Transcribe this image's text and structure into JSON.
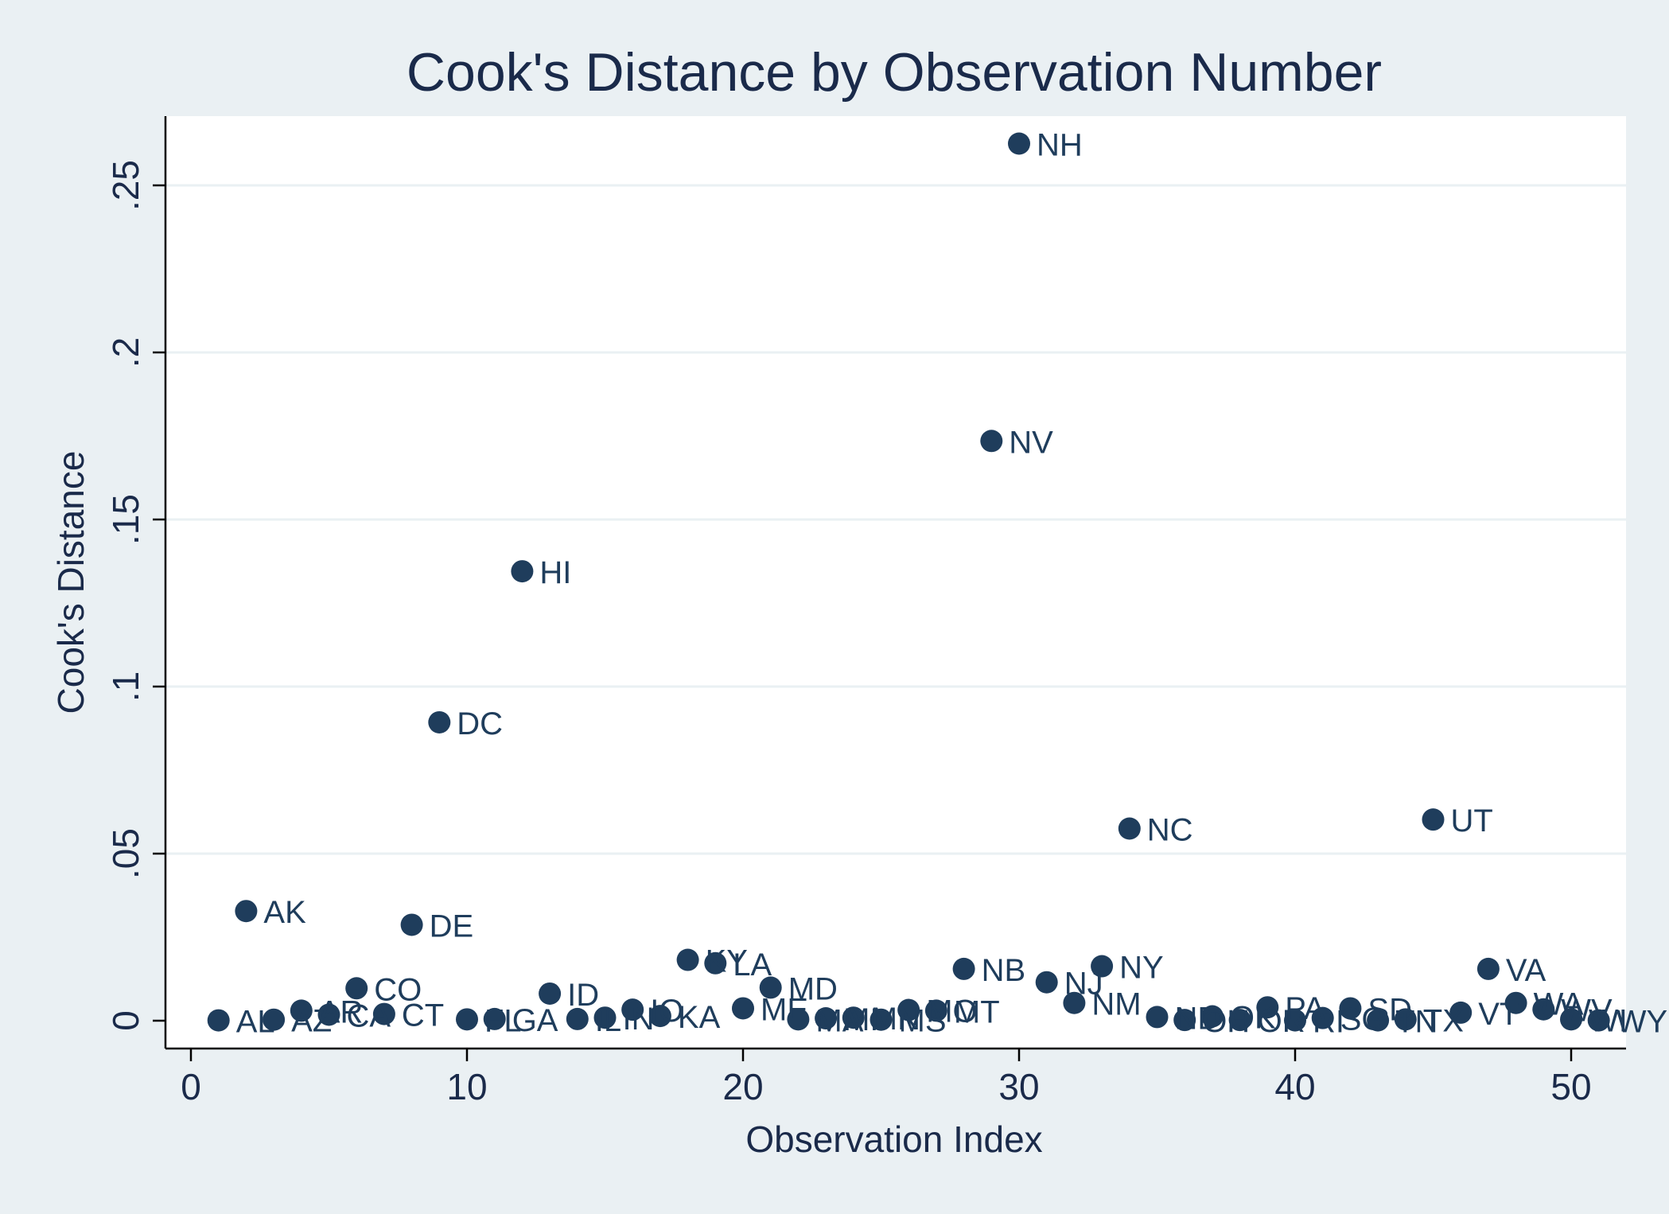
{
  "colors": {
    "background": "#eaf0f3",
    "plot_area": "#ffffff",
    "marker": "#1f3d5c",
    "gridline": "#eaf0f3",
    "axis": "#000000",
    "text": "#1a2a4a"
  },
  "chart_data": {
    "type": "scatter",
    "title": "Cook's Distance by Observation Number",
    "xlabel": "Observation Index",
    "ylabel": "Cook's Distance",
    "xlim": [
      0,
      52
    ],
    "ylim": [
      0,
      0.27
    ],
    "x_ticks": [
      {
        "value": 0,
        "label": "0"
      },
      {
        "value": 10,
        "label": "10"
      },
      {
        "value": 20,
        "label": "20"
      },
      {
        "value": 30,
        "label": "30"
      },
      {
        "value": 40,
        "label": "40"
      },
      {
        "value": 50,
        "label": "50"
      }
    ],
    "y_ticks": [
      {
        "value": 0,
        "label": "0"
      },
      {
        "value": 0.05,
        "label": ".05"
      },
      {
        "value": 0.1,
        "label": ".1"
      },
      {
        "value": 0.15,
        "label": ".15"
      },
      {
        "value": 0.2,
        "label": ".2"
      },
      {
        "value": 0.25,
        "label": ".25"
      }
    ],
    "grid": "horizontal",
    "marker_labels": true,
    "points": [
      {
        "x": 1,
        "y": 0.0001,
        "label": "AL"
      },
      {
        "x": 2,
        "y": 0.0328,
        "label": "AK"
      },
      {
        "x": 3,
        "y": 0.0003,
        "label": "AZ"
      },
      {
        "x": 4,
        "y": 0.003,
        "label": "AR"
      },
      {
        "x": 5,
        "y": 0.0018,
        "label": "CA"
      },
      {
        "x": 6,
        "y": 0.0097,
        "label": "CO"
      },
      {
        "x": 7,
        "y": 0.002,
        "label": "CT"
      },
      {
        "x": 8,
        "y": 0.0287,
        "label": "DE"
      },
      {
        "x": 9,
        "y": 0.0893,
        "label": "DC"
      },
      {
        "x": 10,
        "y": 0.0004,
        "label": "FL"
      },
      {
        "x": 11,
        "y": 0.0005,
        "label": "GA"
      },
      {
        "x": 12,
        "y": 0.1345,
        "label": "HI"
      },
      {
        "x": 13,
        "y": 0.0081,
        "label": "ID"
      },
      {
        "x": 14,
        "y": 0.0005,
        "label": "IL"
      },
      {
        "x": 15,
        "y": 0.0009,
        "label": "IN"
      },
      {
        "x": 16,
        "y": 0.0033,
        "label": "IO"
      },
      {
        "x": 17,
        "y": 0.0014,
        "label": "KA"
      },
      {
        "x": 18,
        "y": 0.0182,
        "label": "KY"
      },
      {
        "x": 19,
        "y": 0.0172,
        "label": "LA"
      },
      {
        "x": 20,
        "y": 0.0037,
        "label": "ME"
      },
      {
        "x": 21,
        "y": 0.0099,
        "label": "MD"
      },
      {
        "x": 22,
        "y": 0.0004,
        "label": "MA"
      },
      {
        "x": 23,
        "y": 0.0007,
        "label": "MI"
      },
      {
        "x": 24,
        "y": 0.0009,
        "label": "MN"
      },
      {
        "x": 25,
        "y": 0.0003,
        "label": "MS"
      },
      {
        "x": 26,
        "y": 0.0032,
        "label": "MO"
      },
      {
        "x": 27,
        "y": 0.003,
        "label": "MT"
      },
      {
        "x": 28,
        "y": 0.0155,
        "label": "NB"
      },
      {
        "x": 29,
        "y": 0.1735,
        "label": "NV"
      },
      {
        "x": 30,
        "y": 0.2625,
        "label": "NH"
      },
      {
        "x": 31,
        "y": 0.0115,
        "label": "NJ"
      },
      {
        "x": 32,
        "y": 0.0053,
        "label": "NM"
      },
      {
        "x": 33,
        "y": 0.0163,
        "label": "NY"
      },
      {
        "x": 34,
        "y": 0.0575,
        "label": "NC"
      },
      {
        "x": 35,
        "y": 0.0011,
        "label": "ND"
      },
      {
        "x": 36,
        "y": 0.0002,
        "label": "OH"
      },
      {
        "x": 37,
        "y": 0.0013,
        "label": "OK"
      },
      {
        "x": 38,
        "y": 0.0002,
        "label": "OR"
      },
      {
        "x": 39,
        "y": 0.004,
        "label": "PA"
      },
      {
        "x": 40,
        "y": 0.0001,
        "label": "RI"
      },
      {
        "x": 41,
        "y": 0.0008,
        "label": "SC"
      },
      {
        "x": 42,
        "y": 0.0037,
        "label": "SD"
      },
      {
        "x": 43,
        "y": 0.0001,
        "label": "TN"
      },
      {
        "x": 44,
        "y": 0.0004,
        "label": "TX"
      },
      {
        "x": 45,
        "y": 0.0602,
        "label": "UT"
      },
      {
        "x": 46,
        "y": 0.0024,
        "label": "VT"
      },
      {
        "x": 47,
        "y": 0.0155,
        "label": "VA"
      },
      {
        "x": 48,
        "y": 0.0053,
        "label": "WA"
      },
      {
        "x": 49,
        "y": 0.0034,
        "label": "WV"
      },
      {
        "x": 50,
        "y": 0.0004,
        "label": "WI"
      },
      {
        "x": 51,
        "y": 0.0001,
        "label": "WY"
      }
    ]
  }
}
